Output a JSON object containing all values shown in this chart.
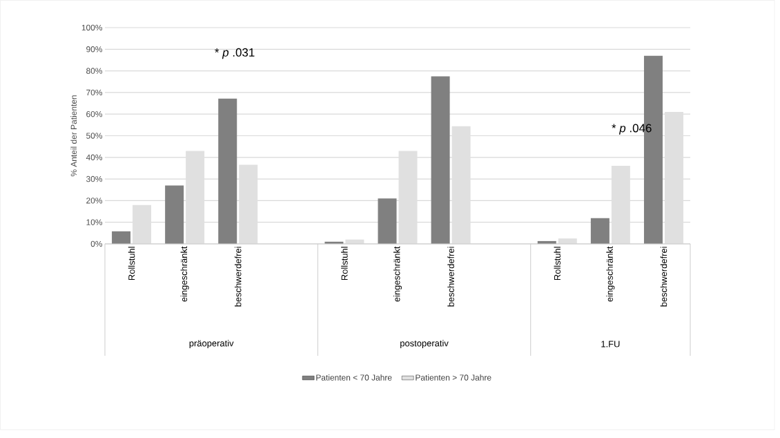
{
  "chart_data": {
    "type": "bar",
    "categories": [
      "Rollstuhl",
      "eingeschränkt",
      "beschwerdefrei",
      null,
      "Rollstuhl",
      "eingeschränkt",
      "beschwerdefrei",
      null,
      "Rollstuhl",
      "eingeschränkt",
      "beschwerdefrei"
    ],
    "series": [
      {
        "name": "Patienten < 70 Jahre",
        "color": "#808080",
        "values": [
          5.8,
          27,
          67.2,
          null,
          1,
          21,
          77.5,
          null,
          1.3,
          11.9,
          87
        ]
      },
      {
        "name": "Patienten > 70 Jahre",
        "color": "#e0e0e0",
        "values": [
          18,
          43,
          36.6,
          null,
          2,
          43,
          54.4,
          null,
          2.5,
          36.1,
          61
        ]
      }
    ],
    "ylabel": "% Anteil der Patienten",
    "ylim": [
      0,
      100
    ],
    "yticks": [
      {
        "value": 0,
        "label": "0%"
      },
      {
        "value": 10,
        "label": "10%"
      },
      {
        "value": 20,
        "label": "20%"
      },
      {
        "value": 30,
        "label": "30%"
      },
      {
        "value": 40,
        "label": "40%"
      },
      {
        "value": 50,
        "label": "50%"
      },
      {
        "value": 60,
        "label": "60%"
      },
      {
        "value": 70,
        "label": "70%"
      },
      {
        "value": 80,
        "label": "80%"
      },
      {
        "value": 90,
        "label": "90%"
      },
      {
        "value": 100,
        "label": "100%"
      }
    ],
    "annotations": [
      "* *p* .031",
      "* *p* .046",
      "präoperativ",
      "postoperativ",
      "1.FU"
    ],
    "grid": "y",
    "legend": "bottom"
  }
}
